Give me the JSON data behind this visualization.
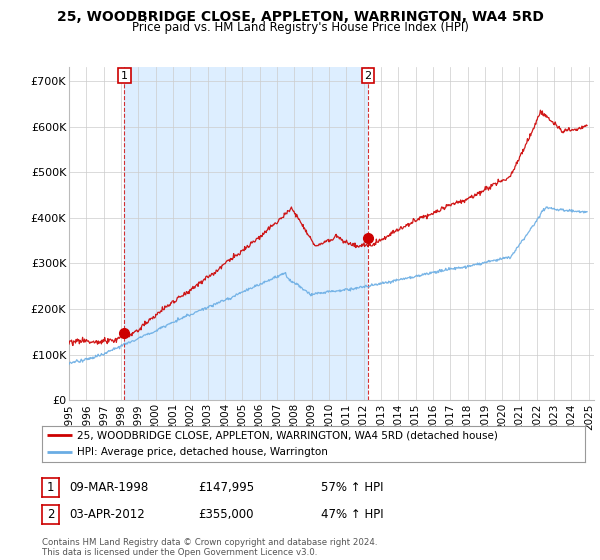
{
  "title": "25, WOODBRIDGE CLOSE, APPLETON, WARRINGTON, WA4 5RD",
  "subtitle": "Price paid vs. HM Land Registry's House Price Index (HPI)",
  "ylabel_ticks": [
    "£0",
    "£100K",
    "£200K",
    "£300K",
    "£400K",
    "£500K",
    "£600K",
    "£700K"
  ],
  "ytick_values": [
    0,
    100000,
    200000,
    300000,
    400000,
    500000,
    600000,
    700000
  ],
  "ylim": [
    0,
    730000
  ],
  "xlim_start": 1995.0,
  "xlim_end": 2025.3,
  "sale1_x": 1998.19,
  "sale1_y": 147995,
  "sale2_x": 2012.25,
  "sale2_y": 355000,
  "legend_line1": "25, WOODBRIDGE CLOSE, APPLETON, WARRINGTON, WA4 5RD (detached house)",
  "legend_line2": "HPI: Average price, detached house, Warrington",
  "annotation1_date": "09-MAR-1998",
  "annotation1_price": "£147,995",
  "annotation1_hpi": "57% ↑ HPI",
  "annotation2_date": "03-APR-2012",
  "annotation2_price": "£355,000",
  "annotation2_hpi": "47% ↑ HPI",
  "footer": "Contains HM Land Registry data © Crown copyright and database right 2024.\nThis data is licensed under the Open Government Licence v3.0.",
  "line_color_red": "#cc0000",
  "line_color_blue": "#6aade4",
  "shade_color": "#ddeeff",
  "background_color": "#ffffff",
  "grid_color": "#cccccc"
}
